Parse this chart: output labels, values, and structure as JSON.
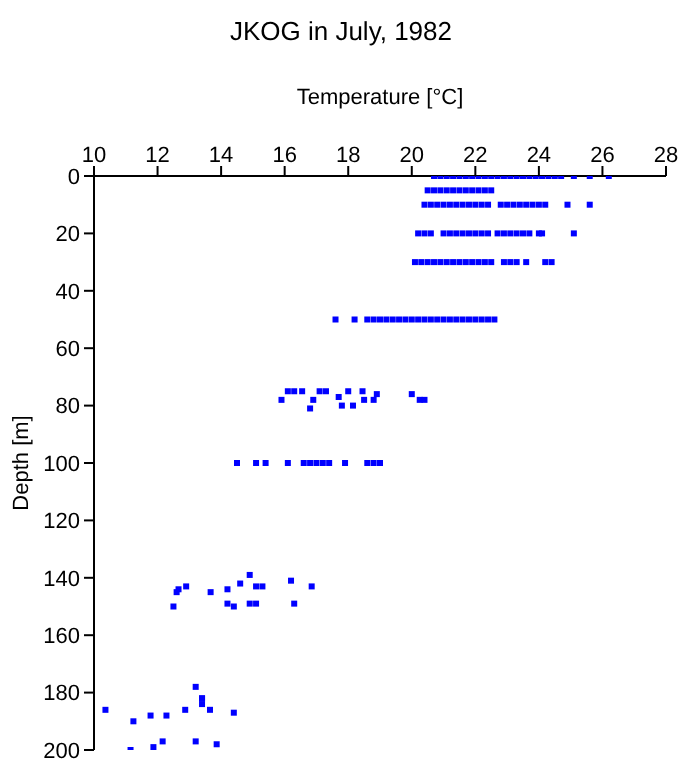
{
  "chart_data": {
    "type": "scatter",
    "title": "JKOG in July, 1982",
    "xlabel": "Temperature [°C]",
    "ylabel": "Depth [m]",
    "marker": "square",
    "xlim": [
      10,
      28
    ],
    "xticks": [
      10,
      12,
      14,
      16,
      18,
      20,
      22,
      24,
      26,
      28
    ],
    "ylim": [
      200,
      0
    ],
    "yticks": [
      0,
      20,
      40,
      60,
      80,
      100,
      120,
      140,
      160,
      180,
      200
    ],
    "series": [
      {
        "color": "#0000ff",
        "x": [
          20.7,
          20.9,
          21.1,
          21.3,
          21.5,
          21.7,
          21.9,
          22.1,
          22.3,
          22.5,
          22.7,
          22.9,
          23.1,
          23.3,
          23.5,
          23.7,
          23.9,
          24.1,
          24.3,
          24.5,
          24.7,
          25.1,
          25.6,
          26.2,
          20.5,
          20.7,
          20.9,
          21.1,
          21.3,
          21.5,
          21.7,
          21.9,
          22.1,
          22.3,
          22.5,
          20.4,
          20.6,
          20.8,
          21.0,
          21.2,
          21.4,
          21.6,
          21.8,
          22.0,
          22.2,
          22.4,
          22.8,
          23.0,
          23.2,
          23.4,
          23.6,
          23.8,
          24.0,
          24.2,
          24.9,
          25.6,
          20.2,
          20.4,
          20.6,
          21.0,
          21.2,
          21.4,
          21.6,
          21.8,
          22.0,
          22.2,
          22.4,
          22.7,
          22.9,
          23.1,
          23.3,
          23.5,
          23.7,
          24.0,
          24.1,
          25.1,
          20.1,
          20.3,
          20.5,
          20.7,
          20.9,
          21.1,
          21.3,
          21.5,
          21.7,
          21.9,
          22.1,
          22.3,
          22.5,
          22.9,
          23.1,
          23.3,
          23.6,
          24.2,
          24.4,
          17.6,
          18.2,
          18.6,
          18.8,
          19.0,
          19.2,
          19.4,
          19.6,
          19.8,
          20.0,
          20.2,
          20.4,
          20.6,
          20.8,
          21.0,
          21.2,
          21.4,
          21.6,
          21.8,
          22.0,
          22.2,
          22.4,
          22.6,
          15.9,
          16.1,
          16.3,
          16.55,
          16.8,
          16.9,
          17.1,
          17.3,
          17.7,
          17.8,
          18.0,
          18.15,
          18.45,
          18.5,
          18.8,
          18.9,
          20.0,
          20.25,
          20.4,
          14.5,
          15.1,
          15.4,
          16.1,
          16.6,
          16.8,
          17.0,
          17.2,
          17.4,
          17.9,
          18.6,
          18.8,
          19.0,
          10.36,
          11.15,
          11.24,
          11.78,
          11.87,
          12.16,
          12.28,
          12.5,
          12.6,
          12.66,
          12.87,
          12.9,
          13.2,
          13.2,
          13.4,
          13.4,
          13.4,
          13.65,
          13.67,
          13.86,
          14.2,
          14.2,
          14.4,
          14.4,
          14.6,
          14.9,
          14.9,
          15.1,
          15.1,
          15.3,
          16.2,
          16.3,
          16.85
        ],
        "values": [
          0,
          0,
          0,
          0,
          0,
          0,
          0,
          0,
          0,
          0,
          0,
          0,
          0,
          0,
          0,
          0,
          0,
          0,
          0,
          0,
          0,
          0,
          0,
          0,
          5,
          5,
          5,
          5,
          5,
          5,
          5,
          5,
          5,
          5,
          5,
          10,
          10,
          10,
          10,
          10,
          10,
          10,
          10,
          10,
          10,
          10,
          10,
          10,
          10,
          10,
          10,
          10,
          10,
          10,
          10,
          10,
          20,
          20,
          20,
          20,
          20,
          20,
          20,
          20,
          20,
          20,
          20,
          20,
          20,
          20,
          20,
          20,
          20,
          20,
          20,
          20,
          30,
          30,
          30,
          30,
          30,
          30,
          30,
          30,
          30,
          30,
          30,
          30,
          30,
          30,
          30,
          30,
          30,
          30,
          30,
          50,
          50,
          50,
          50,
          50,
          50,
          50,
          50,
          50,
          50,
          50,
          50,
          50,
          50,
          50,
          50,
          50,
          50,
          50,
          50,
          50,
          50,
          50,
          78,
          75,
          75,
          75,
          81,
          78,
          75,
          75,
          77,
          80,
          75,
          80,
          75,
          78,
          78,
          76,
          76,
          78,
          78,
          100,
          100,
          100,
          100,
          100,
          100,
          100,
          100,
          100,
          100,
          100,
          100,
          100,
          186,
          200,
          190,
          188,
          199,
          197,
          188,
          150,
          145,
          144,
          186,
          143,
          197,
          178,
          182,
          184,
          182,
          186,
          145,
          198,
          144,
          149,
          150,
          187,
          142,
          139,
          149,
          149,
          143,
          143,
          141,
          149,
          143
        ]
      }
    ]
  }
}
